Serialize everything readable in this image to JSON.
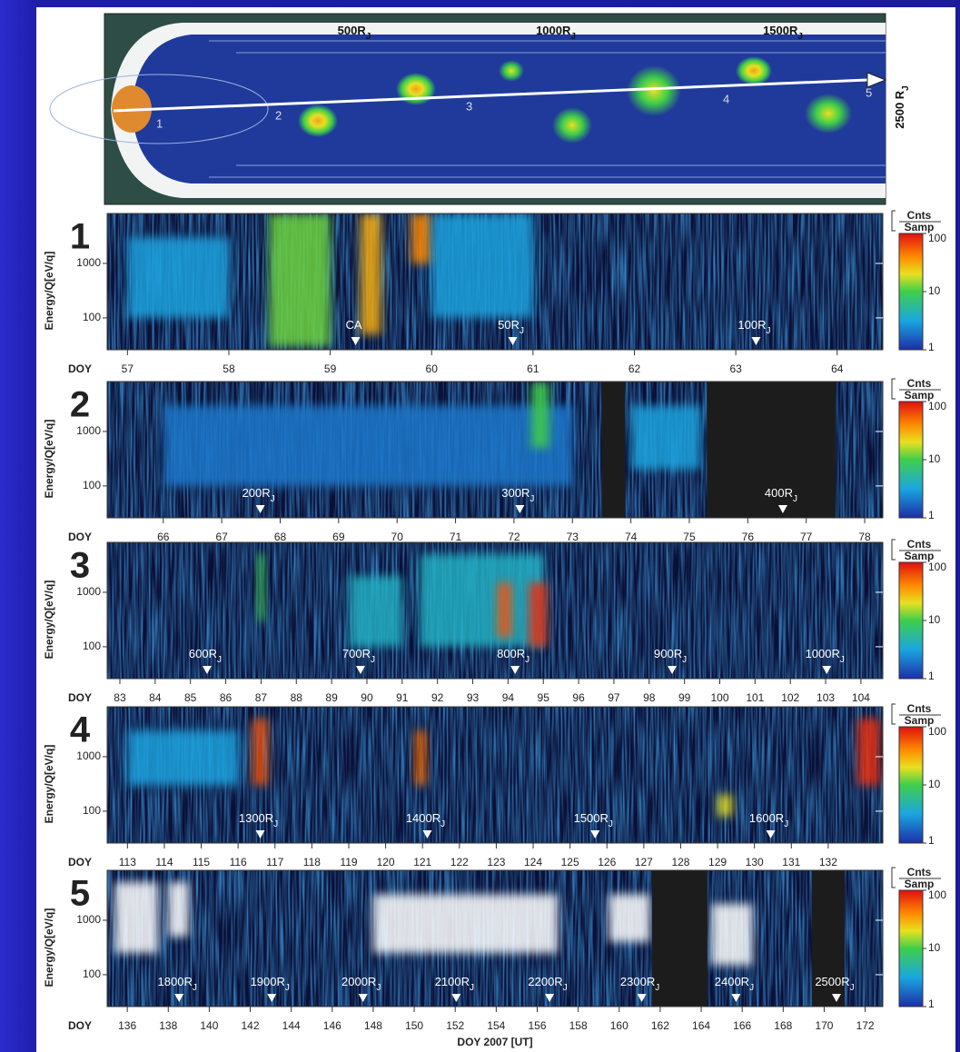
{
  "diagram": {
    "distance_labels": [
      {
        "text": "500R",
        "sub": "J"
      },
      {
        "text": "1000R",
        "sub": "J"
      },
      {
        "text": "1500R",
        "sub": "J"
      }
    ],
    "end_label": {
      "text": "2500 R",
      "sub": "J"
    },
    "segments": [
      "1",
      "2",
      "3",
      "4",
      "5"
    ]
  },
  "chart_data": [
    {
      "type": "heatmap",
      "panel_label": "1",
      "ylabel": "Energy/Q[eV/q]",
      "xlabel_prefix": "DOY",
      "xlim": [
        56.8,
        64.45
      ],
      "xticks": [
        57,
        58,
        59,
        60,
        61,
        62,
        63,
        64
      ],
      "ylim": [
        26,
        8250
      ],
      "yticks": [
        100,
        1000
      ],
      "log_y": true,
      "colorbar": {
        "title": "Cnts",
        "title2": "Samp",
        "lim": [
          1,
          100
        ],
        "ticks": [
          1,
          10,
          100
        ],
        "log": true
      },
      "markers": [
        {
          "doy": 59.25,
          "text": "CA",
          "sub": ""
        },
        {
          "doy": 60.8,
          "text": "50R",
          "sub": "J"
        },
        {
          "doy": 63.2,
          "text": "100R",
          "sub": "J"
        }
      ],
      "gaps": [],
      "features": [
        [
          57.0,
          58.0,
          100,
          3000,
          3
        ],
        [
          58.4,
          59.0,
          30,
          8000,
          12
        ],
        [
          59.3,
          59.5,
          50,
          8000,
          30
        ],
        [
          59.8,
          60.0,
          1000,
          8000,
          40
        ],
        [
          60.0,
          61.0,
          100,
          8000,
          3
        ]
      ]
    },
    {
      "type": "heatmap",
      "panel_label": "2",
      "ylabel": "Energy/Q[eV/q]",
      "xlabel_prefix": "DOY",
      "xlim": [
        65.04,
        78.31
      ],
      "xticks": [
        66,
        67,
        68,
        69,
        70,
        71,
        72,
        73,
        74,
        75,
        76,
        77,
        78
      ],
      "ylim": [
        26,
        8250
      ],
      "yticks": [
        100,
        1000
      ],
      "log_y": true,
      "colorbar": {
        "title": "Cnts",
        "title2": "Samp",
        "lim": [
          1,
          100
        ],
        "ticks": [
          1,
          10,
          100
        ],
        "log": true
      },
      "markers": [
        {
          "doy": 67.66,
          "text": "200R",
          "sub": "J"
        },
        {
          "doy": 72.1,
          "text": "300R",
          "sub": "J"
        },
        {
          "doy": 76.6,
          "text": "400R",
          "sub": "J"
        }
      ],
      "gaps": [
        [
          73.5,
          73.9
        ],
        [
          75.3,
          77.5
        ]
      ],
      "features": [
        [
          66.0,
          73.0,
          100,
          3000,
          2
        ],
        [
          72.3,
          72.6,
          500,
          8000,
          10
        ],
        [
          74.0,
          75.2,
          200,
          3000,
          3
        ]
      ]
    },
    {
      "type": "heatmap",
      "panel_label": "3",
      "ylabel": "Energy/Q[eV/q]",
      "xlabel_prefix": "DOY",
      "xlim": [
        82.64,
        104.62
      ],
      "xticks": [
        83,
        84,
        85,
        86,
        87,
        88,
        89,
        90,
        91,
        92,
        93,
        94,
        95,
        96,
        97,
        98,
        99,
        100,
        101,
        102,
        103,
        104
      ],
      "ylim": [
        26,
        8250
      ],
      "yticks": [
        100,
        1000
      ],
      "log_y": true,
      "colorbar": {
        "title": "Cnts",
        "title2": "Samp",
        "lim": [
          1,
          100
        ],
        "ticks": [
          1,
          10,
          100
        ],
        "log": true
      },
      "markers": [
        {
          "doy": 85.47,
          "text": "600R",
          "sub": "J"
        },
        {
          "doy": 89.82,
          "text": "700R",
          "sub": "J"
        },
        {
          "doy": 94.2,
          "text": "800R",
          "sub": "J"
        },
        {
          "doy": 98.65,
          "text": "900R",
          "sub": "J"
        },
        {
          "doy": 103.03,
          "text": "1000R",
          "sub": "J"
        }
      ],
      "gaps": [],
      "features": [
        [
          86.9,
          87.1,
          300,
          5000,
          10
        ],
        [
          89.5,
          91.0,
          100,
          2000,
          4
        ],
        [
          91.5,
          95.0,
          100,
          5000,
          4
        ],
        [
          93.7,
          94.1,
          150,
          1500,
          60
        ],
        [
          94.6,
          95.1,
          100,
          1500,
          80
        ]
      ]
    },
    {
      "type": "heatmap",
      "panel_label": "4",
      "ylabel": "Energy/Q[eV/q]",
      "xlabel_prefix": "DOY",
      "xlim": [
        112.45,
        133.48
      ],
      "xticks": [
        113,
        114,
        115,
        116,
        117,
        118,
        119,
        120,
        121,
        122,
        123,
        124,
        125,
        126,
        127,
        128,
        129,
        130,
        131,
        132
      ],
      "ylim": [
        26,
        8250
      ],
      "yticks": [
        100,
        1000
      ],
      "log_y": true,
      "colorbar": {
        "title": "Cnts",
        "title2": "Samp",
        "lim": [
          1,
          100
        ],
        "ticks": [
          1,
          10,
          100
        ],
        "log": true
      },
      "markers": [
        {
          "doy": 116.6,
          "text": "1300R",
          "sub": "J"
        },
        {
          "doy": 121.13,
          "text": "1400R",
          "sub": "J"
        },
        {
          "doy": 125.68,
          "text": "1500R",
          "sub": "J"
        },
        {
          "doy": 130.44,
          "text": "1600R",
          "sub": "J"
        }
      ],
      "gaps": [],
      "features": [
        [
          113.0,
          116.0,
          300,
          3000,
          3
        ],
        [
          116.4,
          116.8,
          300,
          5000,
          60
        ],
        [
          120.8,
          121.1,
          300,
          3000,
          50
        ],
        [
          129.0,
          129.4,
          80,
          200,
          20
        ],
        [
          132.8,
          133.4,
          300,
          5000,
          80
        ]
      ]
    },
    {
      "type": "heatmap",
      "panel_label": "5",
      "ylabel": "Energy/Q[eV/q]",
      "xlabel_prefix": "DOY",
      "xlabel": "DOY 2007 [UT]",
      "xlim": [
        135.02,
        172.86
      ],
      "xticks": [
        136,
        138,
        140,
        142,
        144,
        146,
        148,
        150,
        152,
        154,
        156,
        158,
        160,
        162,
        164,
        166,
        168,
        170,
        172
      ],
      "ylim": [
        26,
        8250
      ],
      "yticks": [
        100,
        1000
      ],
      "log_y": true,
      "colorbar": {
        "title": "Cnts",
        "title2": "Samp",
        "lim": [
          1,
          100
        ],
        "ticks": [
          1,
          10,
          100
        ],
        "log": true
      },
      "markers": [
        {
          "doy": 138.53,
          "text": "1800R",
          "sub": "J"
        },
        {
          "doy": 143.05,
          "text": "1900R",
          "sub": "J"
        },
        {
          "doy": 147.5,
          "text": "2000R",
          "sub": "J"
        },
        {
          "doy": 152.05,
          "text": "2100R",
          "sub": "J"
        },
        {
          "doy": 156.6,
          "text": "2200R",
          "sub": "J"
        },
        {
          "doy": 161.1,
          "text": "2300R",
          "sub": "J"
        },
        {
          "doy": 165.7,
          "text": "2400R",
          "sub": "J"
        },
        {
          "doy": 170.6,
          "text": "2500R",
          "sub": "J"
        }
      ],
      "gaps": [
        [
          161.6,
          164.3
        ],
        [
          169.4,
          171.0
        ]
      ],
      "features": [
        [
          135.4,
          137.5,
          250,
          5000,
          150
        ],
        [
          138.0,
          139.0,
          500,
          5000,
          150
        ],
        [
          148.0,
          157.0,
          250,
          3000,
          150
        ],
        [
          159.5,
          161.5,
          400,
          3000,
          150
        ],
        [
          164.5,
          166.5,
          150,
          2000,
          120
        ]
      ]
    }
  ]
}
